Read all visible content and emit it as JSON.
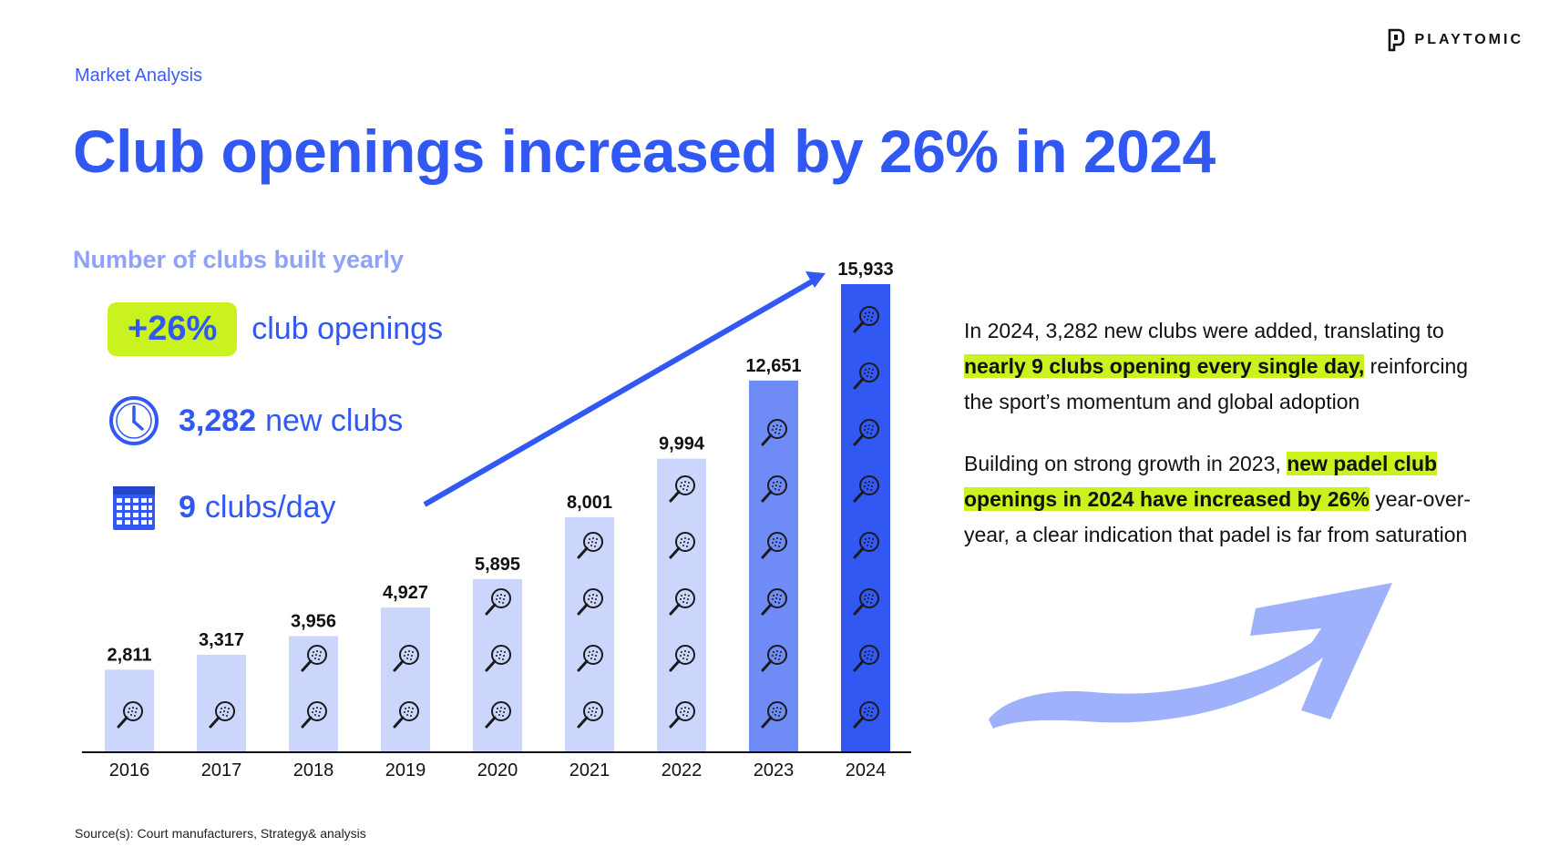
{
  "header": {
    "section": "Market Analysis",
    "title": "Club openings increased by 26% in 2024",
    "logo": "PLAYTOMIC"
  },
  "kpis": {
    "growth_badge": "+26%",
    "growth_label": "club openings",
    "new_clubs_value": "3,282",
    "new_clubs_label": "new clubs",
    "per_day_value": "9",
    "per_day_label": "clubs/day"
  },
  "paragraph1": {
    "part1": "In 2024, 3,282 new clubs were added, translating to ",
    "highlight": "nearly 9 clubs opening every single day,",
    "part2": " reinforcing the sport’s momentum and global adoption"
  },
  "paragraph2": {
    "part1": "Building on strong growth in 2023, ",
    "highlight": "new padel club openings in 2024 have increased by 26%",
    "part2": " year-over-year, a clear indication that padel is far from saturation"
  },
  "source": "Source(s): Court manufacturers, Strategy& analysis",
  "chart_data": {
    "type": "bar",
    "title": "Number of clubs built yearly",
    "categories": [
      "2016",
      "2017",
      "2018",
      "2019",
      "2020",
      "2021",
      "2022",
      "2023",
      "2024"
    ],
    "values": [
      2811,
      3317,
      3956,
      4927,
      5895,
      8001,
      9994,
      12651,
      15933
    ],
    "value_labels": [
      "2,811",
      "3,317",
      "3,956",
      "4,927",
      "5,895",
      "8,001",
      "9,994",
      "12,651",
      "15,933"
    ],
    "ylim": [
      0,
      15933
    ],
    "grid": false,
    "colors": {
      "light": "#ccd6fd",
      "mid": "#6f8cf6",
      "dark": "#3158f2"
    },
    "bar_colors": [
      "light",
      "light",
      "light",
      "light",
      "light",
      "light",
      "light",
      "mid",
      "dark"
    ]
  },
  "colors": {
    "brand_blue": "#3158f2",
    "lime": "#c9f21e",
    "soft_blue": "#8fa2f8"
  },
  "icons": [
    "clock-icon",
    "calendar-icon",
    "padel-racket-icon",
    "playtomic-logo-icon",
    "trend-arrow-icon"
  ]
}
